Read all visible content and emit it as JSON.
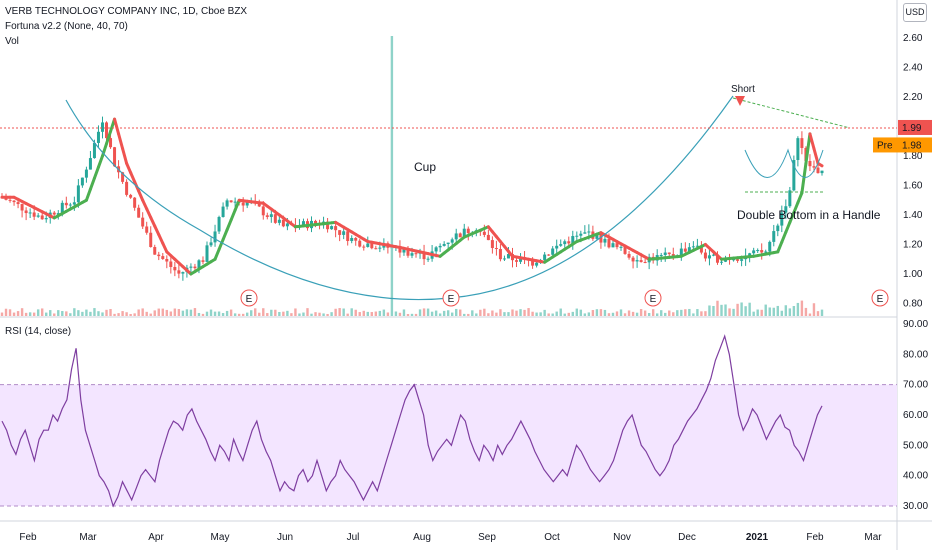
{
  "header": {
    "symbol_line": "VERB TECHNOLOGY COMPANY INC, 1D, Cboe BZX",
    "indicator_line": "Fortuna v2.2 (None, 40, 70)",
    "volume_line": "Vol",
    "currency": "USD"
  },
  "chart_data": {
    "type": "candlestick",
    "price_axis": {
      "ticks": [
        "2.60",
        "2.40",
        "2.20",
        "2.00",
        "1.80",
        "1.60",
        "1.40",
        "1.20",
        "1.00",
        "0.80"
      ],
      "ylim": [
        0.78,
        2.7
      ]
    },
    "x_axis": {
      "ticks": [
        {
          "label": "Feb",
          "bold": false
        },
        {
          "label": "Mar",
          "bold": false
        },
        {
          "label": "Apr",
          "bold": false
        },
        {
          "label": "May",
          "bold": false
        },
        {
          "label": "Jun",
          "bold": false
        },
        {
          "label": "Jul",
          "bold": false
        },
        {
          "label": "Aug",
          "bold": false
        },
        {
          "label": "Sep",
          "bold": false
        },
        {
          "label": "Oct",
          "bold": false
        },
        {
          "label": "Nov",
          "bold": false
        },
        {
          "label": "Dec",
          "bold": false
        },
        {
          "label": "2021",
          "bold": true
        },
        {
          "label": "Feb",
          "bold": false
        },
        {
          "label": "Mar",
          "bold": false
        }
      ]
    },
    "last_price": {
      "label": "1.99",
      "value": 1.99
    },
    "pre_market": {
      "label": "Pre",
      "value_label": "1.98",
      "value": 1.98
    },
    "annotations": [
      {
        "text": "Cup"
      },
      {
        "text": "Double Bottom in a Handle"
      },
      {
        "text": "Short"
      }
    ],
    "earnings_marker": "E",
    "rsi": {
      "title": "RSI (14, close)",
      "ticks": [
        "90.00",
        "80.00",
        "70.00",
        "60.00",
        "50.00",
        "40.00",
        "30.00"
      ],
      "ylim": [
        27,
        91
      ],
      "band": [
        30,
        70
      ],
      "values": [
        58,
        55,
        50,
        47,
        52,
        55,
        50,
        45,
        52,
        55,
        55,
        60,
        58,
        62,
        65,
        75,
        82,
        65,
        55,
        50,
        45,
        40,
        38,
        35,
        30,
        33,
        38,
        35,
        32,
        36,
        40,
        42,
        40,
        38,
        45,
        50,
        55,
        58,
        57,
        55,
        60,
        62,
        58,
        55,
        52,
        48,
        45,
        50,
        48,
        45,
        52,
        48,
        45,
        50,
        55,
        58,
        52,
        48,
        45,
        40,
        35,
        38,
        36,
        35,
        40,
        42,
        38,
        40,
        45,
        40,
        35,
        38,
        40,
        45,
        42,
        40,
        38,
        35,
        32,
        35,
        38,
        35,
        40,
        45,
        50,
        55,
        60,
        65,
        68,
        70,
        65,
        60,
        50,
        45,
        48,
        50,
        52,
        50,
        55,
        60,
        58,
        52,
        48,
        45,
        50,
        48,
        45,
        50,
        47,
        50,
        52,
        55,
        58,
        55,
        52,
        48,
        45,
        42,
        40,
        38,
        40,
        42,
        40,
        45,
        50,
        48,
        45,
        42,
        40,
        38,
        40,
        42,
        45,
        50,
        55,
        58,
        60,
        55,
        50,
        48,
        45,
        42,
        40,
        42,
        45,
        50,
        52,
        55,
        58,
        60,
        62,
        65,
        68,
        72,
        78,
        82,
        86,
        80,
        70,
        60,
        55,
        58,
        62,
        60,
        56,
        52,
        55,
        58,
        60,
        56,
        55,
        50,
        48,
        45,
        50,
        55,
        60,
        63
      ]
    }
  }
}
